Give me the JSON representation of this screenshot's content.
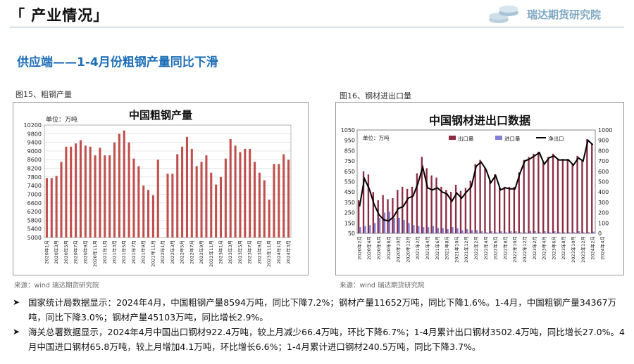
{
  "header": {
    "title": "「 产业情况」",
    "logo_text": "瑞达期货研究院"
  },
  "subtitle": "供应端——1-4月份粗钢产量同比下滑",
  "fig1": {
    "label": "图15、粗钢产量",
    "source": "来源：wind   瑞达期货研究院"
  },
  "fig2": {
    "label": "图16、钢材进出口量",
    "source": "来源：wind   瑞达期货研究院"
  },
  "bullets": [
    "国家统计局数据显示：2024年4月，中国粗钢产量8594万吨，同比下降7.2%；钢材产量11652万吨，同比下降1.6%。1-4月，中国粗钢产量34367万吨，同比下降3.0%；钢材产量45103万吨，同比增长2.9%。",
    "海关总署数据显示，2024年4月中国出口钢材922.4万吨，较上月减少66.4万吨，环比下降6.7%；1-4月累计出口钢材3502.4万吨，同比增长27.0%。4月中国进口钢材65.8万吨，较上月增加4.1万吨，环比增长6.6%；1-4月累计进口钢材240.5万吨，同比下降3.7%。"
  ],
  "chart_data": [
    {
      "type": "bar",
      "title": "中国粗钢产量",
      "unit_label": "单位：万吨",
      "ylim": [
        5000,
        10200
      ],
      "yticks": [
        5000,
        5400,
        5800,
        6200,
        6600,
        7000,
        7400,
        7800,
        8200,
        8600,
        9000,
        9400,
        9800,
        10200
      ],
      "xtick_labels": [
        "2020年1月",
        "2020年3月",
        "2020年5月",
        "2020年7月",
        "2020年9月",
        "2020年11月",
        "2021年1月",
        "2021年3月",
        "2021年5月",
        "2021年7月",
        "2021年9月",
        "2021年11月",
        "2022年1月",
        "2022年3月",
        "2022年5月",
        "2022年7月",
        "2022年9月",
        "2022年11月",
        "2023年1月",
        "2023年3月",
        "2023年5月",
        "2023年7月",
        "2023年9月",
        "2023年11月",
        "2024年1月",
        "2024年3月"
      ],
      "color": "#c0504d",
      "grid": true,
      "values": [
        7750,
        7750,
        7850,
        8500,
        9200,
        9200,
        9350,
        9500,
        9250,
        9200,
        8800,
        9150,
        8800,
        8800,
        9400,
        9800,
        9950,
        9400,
        8650,
        8300,
        7400,
        7200,
        6950,
        8600,
        5000,
        7950,
        7950,
        8850,
        9200,
        9650,
        9100,
        8300,
        8500,
        8800,
        8000,
        7450,
        7800,
        8650,
        9550,
        9250,
        8950,
        9100,
        9100,
        8500,
        8000,
        7650,
        6750,
        8400,
        8400,
        8850,
        8594
      ]
    },
    {
      "type": "bar",
      "title": "中国钢材进出口数据",
      "unit_label": "单位：万吨",
      "ylim": [
        50,
        1050
      ],
      "yticks": [
        50,
        150,
        250,
        350,
        450,
        550,
        650,
        750,
        850,
        950,
        1050
      ],
      "y2lim": [
        0,
        1000
      ],
      "y2ticks": [
        0,
        100,
        200,
        300,
        400,
        500,
        600,
        700,
        800,
        900,
        1000
      ],
      "legend": [
        "出口量",
        "进口量",
        "净出口"
      ],
      "legend_position": "top",
      "colors": {
        "export": "#8b2c45",
        "import": "#8080d8",
        "net": "#000000"
      },
      "xtick_labels": [
        "2020年2月",
        "2020年4月",
        "2020年6月",
        "2020年8月",
        "2020年10月",
        "2020年12月",
        "2021年2月",
        "2021年4月",
        "2021年6月",
        "2021年8月",
        "2021年10月",
        "2021年12月",
        "2022年2月",
        "2022年4月",
        "2022年6月",
        "2022年8月",
        "2022年10月",
        "2022年12月",
        "2023年2月",
        "2023年4月",
        "2023年6月",
        "2023年8月",
        "2023年10月",
        "2023年12月",
        "2024年2月",
        "2024年4月"
      ],
      "series": [
        {
          "name": "出口量",
          "values": [
            370,
            650,
            620,
            450,
            370,
            420,
            380,
            390,
            470,
            500,
            480,
            500,
            630,
            790,
            680,
            610,
            590,
            500,
            470,
            450,
            520,
            460,
            490,
            560,
            720,
            760,
            680,
            560,
            620,
            490,
            500,
            500,
            500,
            640,
            760,
            790,
            820,
            840,
            740,
            790,
            820,
            770,
            770,
            770,
            720,
            800,
            760,
            960,
            922
          ]
        },
        {
          "name": "进口量",
          "values": [
            110,
            120,
            130,
            150,
            200,
            250,
            260,
            200,
            200,
            180,
            150,
            130,
            120,
            110,
            110,
            120,
            100,
            100,
            90,
            110,
            100,
            80,
            90,
            80,
            80,
            70,
            60,
            70,
            60,
            70,
            60,
            70,
            70,
            60,
            60,
            70,
            70,
            60,
            70,
            60,
            70,
            60,
            60,
            60,
            60,
            70,
            60,
            62,
            66
          ]
        },
        {
          "name": "净出口",
          "values": [
            260,
            530,
            430,
            280,
            180,
            130,
            120,
            160,
            240,
            260,
            340,
            360,
            480,
            640,
            440,
            420,
            440,
            400,
            380,
            310,
            390,
            340,
            400,
            450,
            650,
            690,
            620,
            490,
            560,
            420,
            440,
            430,
            430,
            580,
            700,
            720,
            750,
            780,
            670,
            730,
            750,
            710,
            710,
            710,
            660,
            730,
            700,
            900,
            856
          ]
        }
      ]
    }
  ]
}
